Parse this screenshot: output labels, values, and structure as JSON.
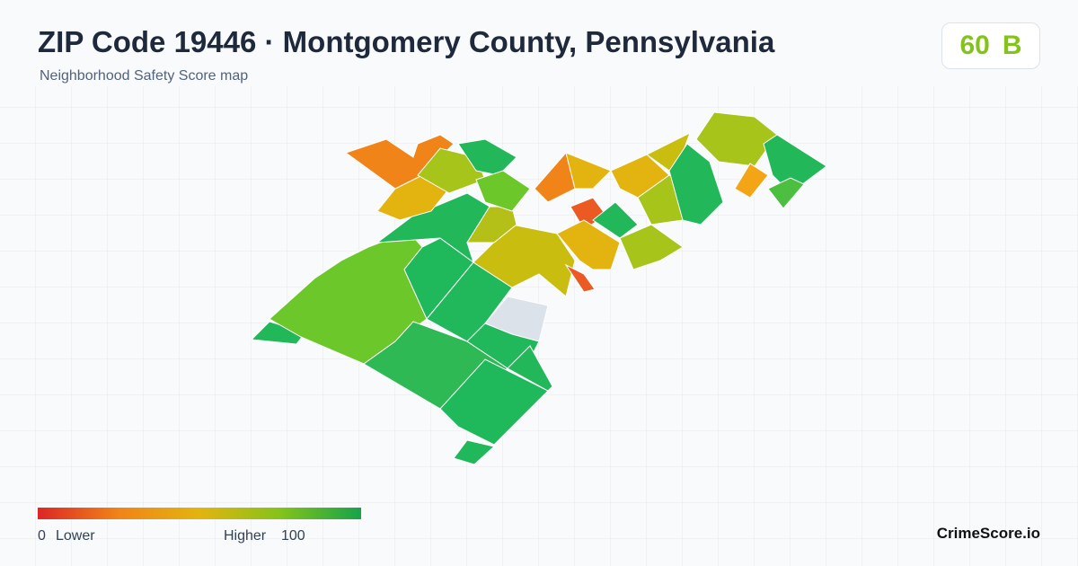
{
  "header": {
    "title": "ZIP Code 19446 · Montgomery County, Pennsylvania",
    "subtitle": "Neighborhood Safety Score map"
  },
  "badge": {
    "score": 60,
    "grade": "B"
  },
  "legend": {
    "min": 0,
    "min_label": "Lower",
    "max_label": "Higher",
    "max": 100
  },
  "footer": {
    "brand": "CrimeScore.io"
  }
}
